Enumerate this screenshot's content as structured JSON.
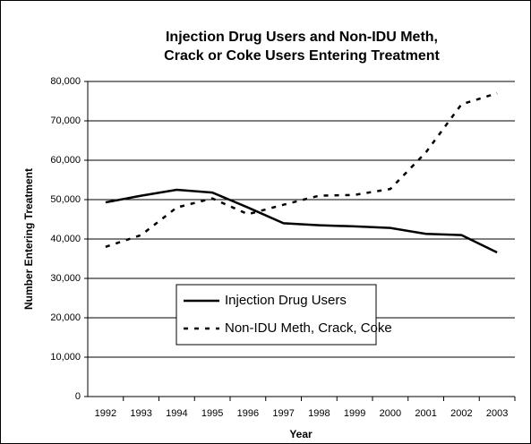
{
  "chart_data": {
    "type": "line",
    "title": [
      "Injection Drug Users and Non-IDU Meth,",
      "Crack or Coke Users Entering Treatment"
    ],
    "x_label": "Year",
    "y_label": "Number Entering Treatment",
    "categories": [
      "1992",
      "1993",
      "1994",
      "1995",
      "1996",
      "1997",
      "1998",
      "1999",
      "2000",
      "2001",
      "2002",
      "2003"
    ],
    "series": [
      {
        "name": "Injection Drug Users",
        "color": "#000000",
        "dash": "solid",
        "values": [
          49300,
          51000,
          52500,
          51800,
          48000,
          44000,
          43500,
          43200,
          42800,
          41300,
          41000,
          36600
        ]
      },
      {
        "name": "Non-IDU Meth, Crack, Coke",
        "color": "#000000",
        "dash": "dashed",
        "values": [
          38000,
          41000,
          48000,
          50300,
          46300,
          48700,
          51000,
          51200,
          52700,
          62000,
          74200,
          77000
        ]
      }
    ],
    "ylim": [
      0,
      80000
    ],
    "yticks": [
      0,
      {
        "value": 10000,
        "label": "10,000"
      },
      {
        "value": 20000,
        "label": "20,000"
      },
      {
        "value": 30000,
        "label": "30,000"
      },
      {
        "value": 40000,
        "label": "40,000"
      },
      {
        "value": 50000,
        "label": "50,000"
      },
      {
        "value": 60000,
        "label": "60,000"
      },
      {
        "value": 70000,
        "label": "70,000"
      },
      {
        "value": 80000,
        "label": "80,000"
      }
    ],
    "grid": true,
    "legend": "center"
  }
}
